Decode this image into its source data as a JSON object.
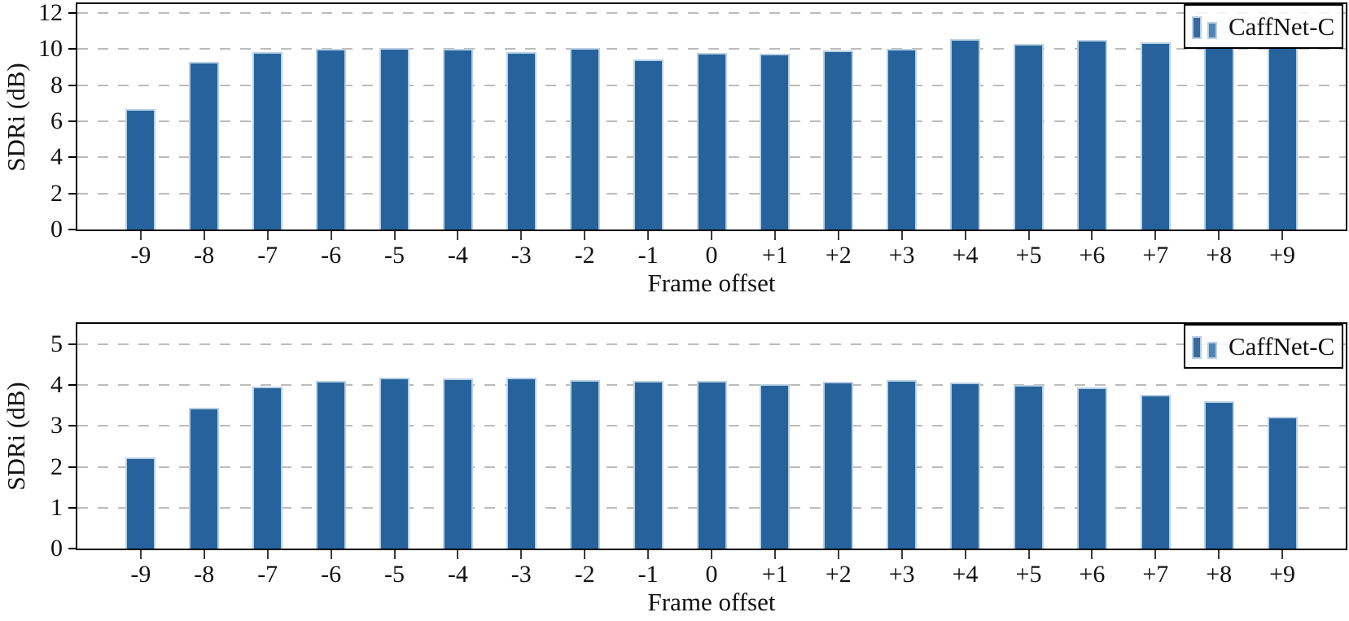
{
  "figure": {
    "description": "Two stacked bar charts of SDRi (dB) versus frame offset for model CaffNet-C"
  },
  "style": {
    "bar_fill": "#26639c",
    "bar_edge": "#b9d0e4",
    "grid_color": "#bcbcbc",
    "axis_color": "#000000",
    "text_color": "#111111",
    "legend_bg": "rgba(255,255,255,0.84)",
    "legend_bar1": "#38699f",
    "legend_bar2": "#4f84b6"
  },
  "chart_data": [
    {
      "type": "bar",
      "title": "",
      "xlabel": "Frame offset",
      "ylabel": "SDRi (dB)",
      "categories": [
        "-9",
        "-8",
        "-7",
        "-6",
        "-5",
        "-4",
        "-3",
        "-2",
        "-1",
        "0",
        "+1",
        "+2",
        "+3",
        "+4",
        "+5",
        "+6",
        "+7",
        "+8",
        "+9"
      ],
      "series": [
        {
          "name": "CaffNet-C",
          "values": [
            6.68,
            9.3,
            9.85,
            10.0,
            10.05,
            10.0,
            9.82,
            10.05,
            9.45,
            9.8,
            9.75,
            9.92,
            10.02,
            10.55,
            10.3,
            10.5,
            10.4,
            10.25,
            10.2
          ]
        }
      ],
      "ylim": [
        0,
        12.5
      ],
      "yticks": [
        0,
        2,
        4,
        6,
        8,
        10,
        12
      ],
      "grid": "horizontal-dashed",
      "legend": {
        "position": "top-right",
        "label": "CaffNet-C"
      }
    },
    {
      "type": "bar",
      "title": "",
      "xlabel": "Frame offset",
      "ylabel": "SDRi (dB)",
      "categories": [
        "-9",
        "-8",
        "-7",
        "-6",
        "-5",
        "-4",
        "-3",
        "-2",
        "-1",
        "0",
        "+1",
        "+2",
        "+3",
        "+4",
        "+5",
        "+6",
        "+7",
        "+8",
        "+9"
      ],
      "series": [
        {
          "name": "CaffNet-C",
          "values": [
            2.23,
            3.44,
            3.97,
            4.1,
            4.18,
            4.17,
            4.19,
            4.13,
            4.1,
            4.11,
            4.03,
            4.09,
            4.13,
            4.06,
            4.0,
            3.94,
            3.77,
            3.6,
            3.22
          ]
        }
      ],
      "ylim": [
        0,
        5.5
      ],
      "yticks": [
        0,
        1,
        2,
        3,
        4,
        5
      ],
      "grid": "horizontal-dashed",
      "legend": {
        "position": "top-right",
        "label": "CaffNet-C"
      }
    }
  ]
}
